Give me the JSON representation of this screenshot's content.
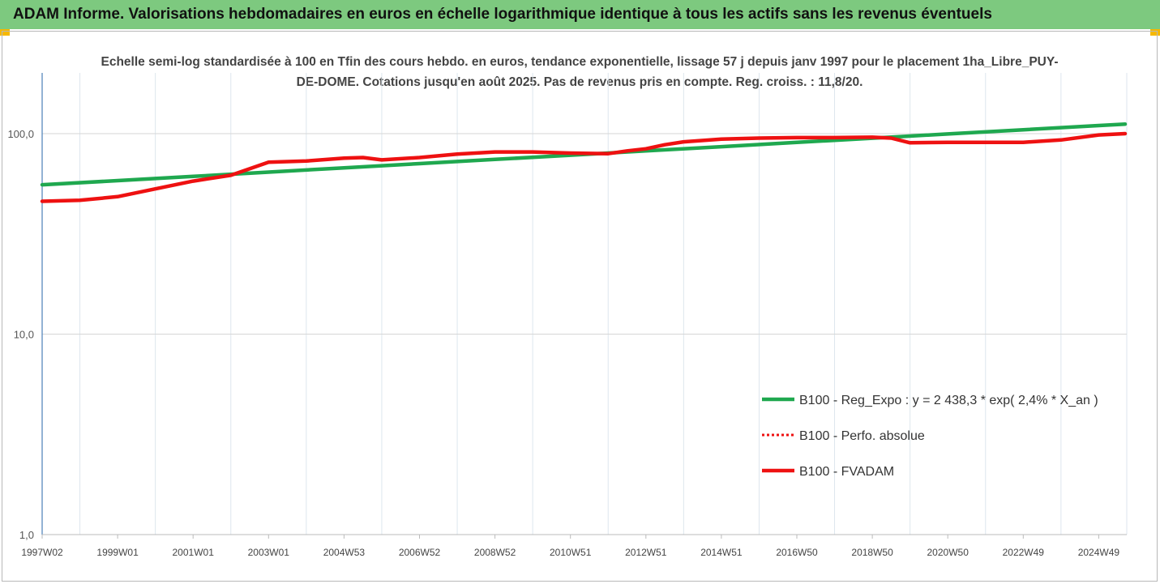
{
  "header": {
    "title": "ADAM Informe. Valorisations hebdomadaires en euros en échelle logarithmique identique à tous les actifs sans les revenus éventuels"
  },
  "colors": {
    "header_bg": "#7dc97f",
    "reg_expo": "#1fa84f",
    "fvadam": "#ee1111",
    "perfo": "#ee1111"
  },
  "chart_data": {
    "type": "line",
    "title": "Echelle semi-log standardisée à 100 en Tfin des cours hebdo. en euros, tendance exponentielle, lissage 57 j depuis janv 1997 pour le placement 1ha_Libre_PUY-DE-DOME. Cotations jusqu'en août 2025. Pas de revenus pris en compte. Reg. croiss. : 11,8/20.",
    "y_scale": "log",
    "ylim": [
      1,
      200
    ],
    "y_ticks": [
      1,
      10,
      100
    ],
    "y_tick_labels": [
      "1,0",
      "10,0",
      "100,0"
    ],
    "xlim": [
      1997.0,
      2025.7
    ],
    "x_ticks": [
      1997.0,
      1999.0,
      2001.0,
      2003.0,
      2005.0,
      2007.0,
      2009.0,
      2011.0,
      2013.0,
      2015.0,
      2017.0,
      2019.0,
      2021.0,
      2023.0,
      2025.0
    ],
    "x_tick_labels": [
      "1997W02",
      "1999W01",
      "2001W01",
      "2003W01",
      "2004W53",
      "2006W52",
      "2008W52",
      "2010W51",
      "2012W51",
      "2014W51",
      "2016W50",
      "2018W50",
      "2020W50",
      "2022W49",
      "2024W49"
    ],
    "grid": "vertical",
    "legend_position": "right",
    "series": [
      {
        "name": "B100 - Reg_Expo : y = 2 438,3 * exp( 2,4% * X_an )",
        "style": "solid-green",
        "x": [
          1997.0,
          1999.0,
          2001.0,
          2003.0,
          2005.0,
          2007.0,
          2009.0,
          2011.0,
          2013.0,
          2015.0,
          2017.0,
          2019.0,
          2021.0,
          2023.0,
          2025.0,
          2025.7
        ],
        "y": [
          55.6,
          58.3,
          61.2,
          64.3,
          67.5,
          70.9,
          74.4,
          78.1,
          82.0,
          86.1,
          90.4,
          94.9,
          99.6,
          104.6,
          109.8,
          111.6
        ]
      },
      {
        "name": "B100 - Perfo. absolue",
        "style": "dotted-red",
        "x": [],
        "y": []
      },
      {
        "name": "B100 - FVADAM",
        "style": "solid-red",
        "x": [
          1997.0,
          1998.0,
          1999.0,
          2000.0,
          2001.0,
          2002.0,
          2003.0,
          2004.0,
          2005.0,
          2005.5,
          2006.0,
          2007.0,
          2008.0,
          2009.0,
          2010.0,
          2011.0,
          2012.0,
          2012.5,
          2013.0,
          2013.5,
          2014.0,
          2015.0,
          2016.0,
          2017.0,
          2018.0,
          2019.0,
          2019.5,
          2020.0,
          2021.0,
          2022.0,
          2023.0,
          2024.0,
          2025.0,
          2025.7
        ],
        "y": [
          46,
          46.5,
          48.5,
          53,
          58,
          62,
          72,
          73,
          75.5,
          76,
          74,
          76,
          79,
          81,
          81,
          80,
          79.5,
          82,
          84,
          88,
          91,
          94,
          95,
          95.5,
          95.5,
          96,
          95,
          90,
          90.5,
          90.5,
          90.5,
          93,
          98.5,
          100
        ]
      }
    ]
  }
}
